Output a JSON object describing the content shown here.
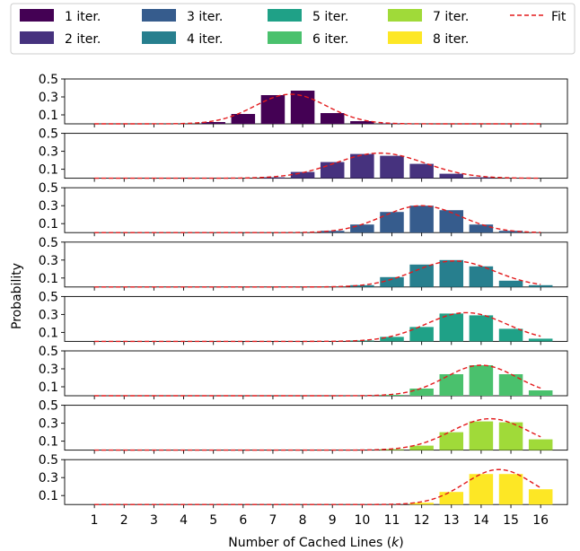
{
  "chart_data": {
    "type": "bar",
    "xlabel": "Number of Cached Lines (",
    "xlabel_var": "k",
    "xlabel_end": ")",
    "ylabel": "Probability",
    "x": [
      1,
      2,
      3,
      4,
      5,
      6,
      7,
      8,
      9,
      10,
      11,
      12,
      13,
      14,
      15,
      16
    ],
    "xlim": [
      0.0,
      16.9
    ],
    "ylim": [
      0,
      0.5
    ],
    "yticks": [
      "0.1",
      "0.3",
      "0.5"
    ],
    "ytick_values": [
      0.1,
      0.3,
      0.5
    ],
    "legend_position": "top",
    "fit_label": "Fit",
    "fit_color": "#e31a1c",
    "series": [
      {
        "name": "1 iter.",
        "color": "#440154",
        "values": [
          0,
          0,
          0,
          0,
          0.02,
          0.11,
          0.32,
          0.37,
          0.12,
          0.03,
          0.005,
          0,
          0,
          0,
          0,
          0
        ],
        "fit": {
          "mean": 7.6,
          "sd": 1.2,
          "peak": 0.33
        }
      },
      {
        "name": "2 iter.",
        "color": "#46327e",
        "values": [
          0,
          0,
          0,
          0,
          0,
          0,
          0.01,
          0.07,
          0.18,
          0.27,
          0.25,
          0.16,
          0.05,
          0.01,
          0,
          0
        ],
        "fit": {
          "mean": 10.6,
          "sd": 1.5,
          "peak": 0.28
        }
      },
      {
        "name": "3 iter.",
        "color": "#365c8d",
        "values": [
          0,
          0,
          0,
          0,
          0,
          0,
          0,
          0,
          0.02,
          0.09,
          0.23,
          0.3,
          0.25,
          0.09,
          0.02,
          0
        ],
        "fit": {
          "mean": 12.0,
          "sd": 1.3,
          "peak": 0.3
        }
      },
      {
        "name": "4 iter.",
        "color": "#277f8e",
        "values": [
          0,
          0,
          0,
          0,
          0,
          0,
          0,
          0,
          0,
          0.02,
          0.11,
          0.25,
          0.3,
          0.23,
          0.07,
          0.02
        ],
        "fit": {
          "mean": 13.1,
          "sd": 1.35,
          "peak": 0.29
        }
      },
      {
        "name": "5 iter.",
        "color": "#1fa187",
        "values": [
          0,
          0,
          0,
          0,
          0,
          0,
          0,
          0,
          0,
          0.01,
          0.05,
          0.16,
          0.31,
          0.29,
          0.14,
          0.03
        ],
        "fit": {
          "mean": 13.5,
          "sd": 1.35,
          "peak": 0.32
        }
      },
      {
        "name": "6 iter.",
        "color": "#4ac16d",
        "values": [
          0,
          0,
          0,
          0,
          0,
          0,
          0,
          0,
          0,
          0,
          0.01,
          0.08,
          0.24,
          0.34,
          0.24,
          0.06
        ],
        "fit": {
          "mean": 14.0,
          "sd": 1.2,
          "peak": 0.34
        }
      },
      {
        "name": "7 iter.",
        "color": "#a0da39",
        "values": [
          0,
          0,
          0,
          0,
          0,
          0,
          0,
          0,
          0,
          0,
          0.01,
          0.05,
          0.2,
          0.32,
          0.31,
          0.12
        ],
        "fit": {
          "mean": 14.3,
          "sd": 1.3,
          "peak": 0.35
        }
      },
      {
        "name": "8 iter.",
        "color": "#fde725",
        "values": [
          0,
          0,
          0,
          0,
          0,
          0,
          0,
          0,
          0,
          0,
          0,
          0.02,
          0.14,
          0.34,
          0.34,
          0.17
        ],
        "fit": {
          "mean": 14.6,
          "sd": 1.15,
          "peak": 0.39
        }
      }
    ]
  }
}
